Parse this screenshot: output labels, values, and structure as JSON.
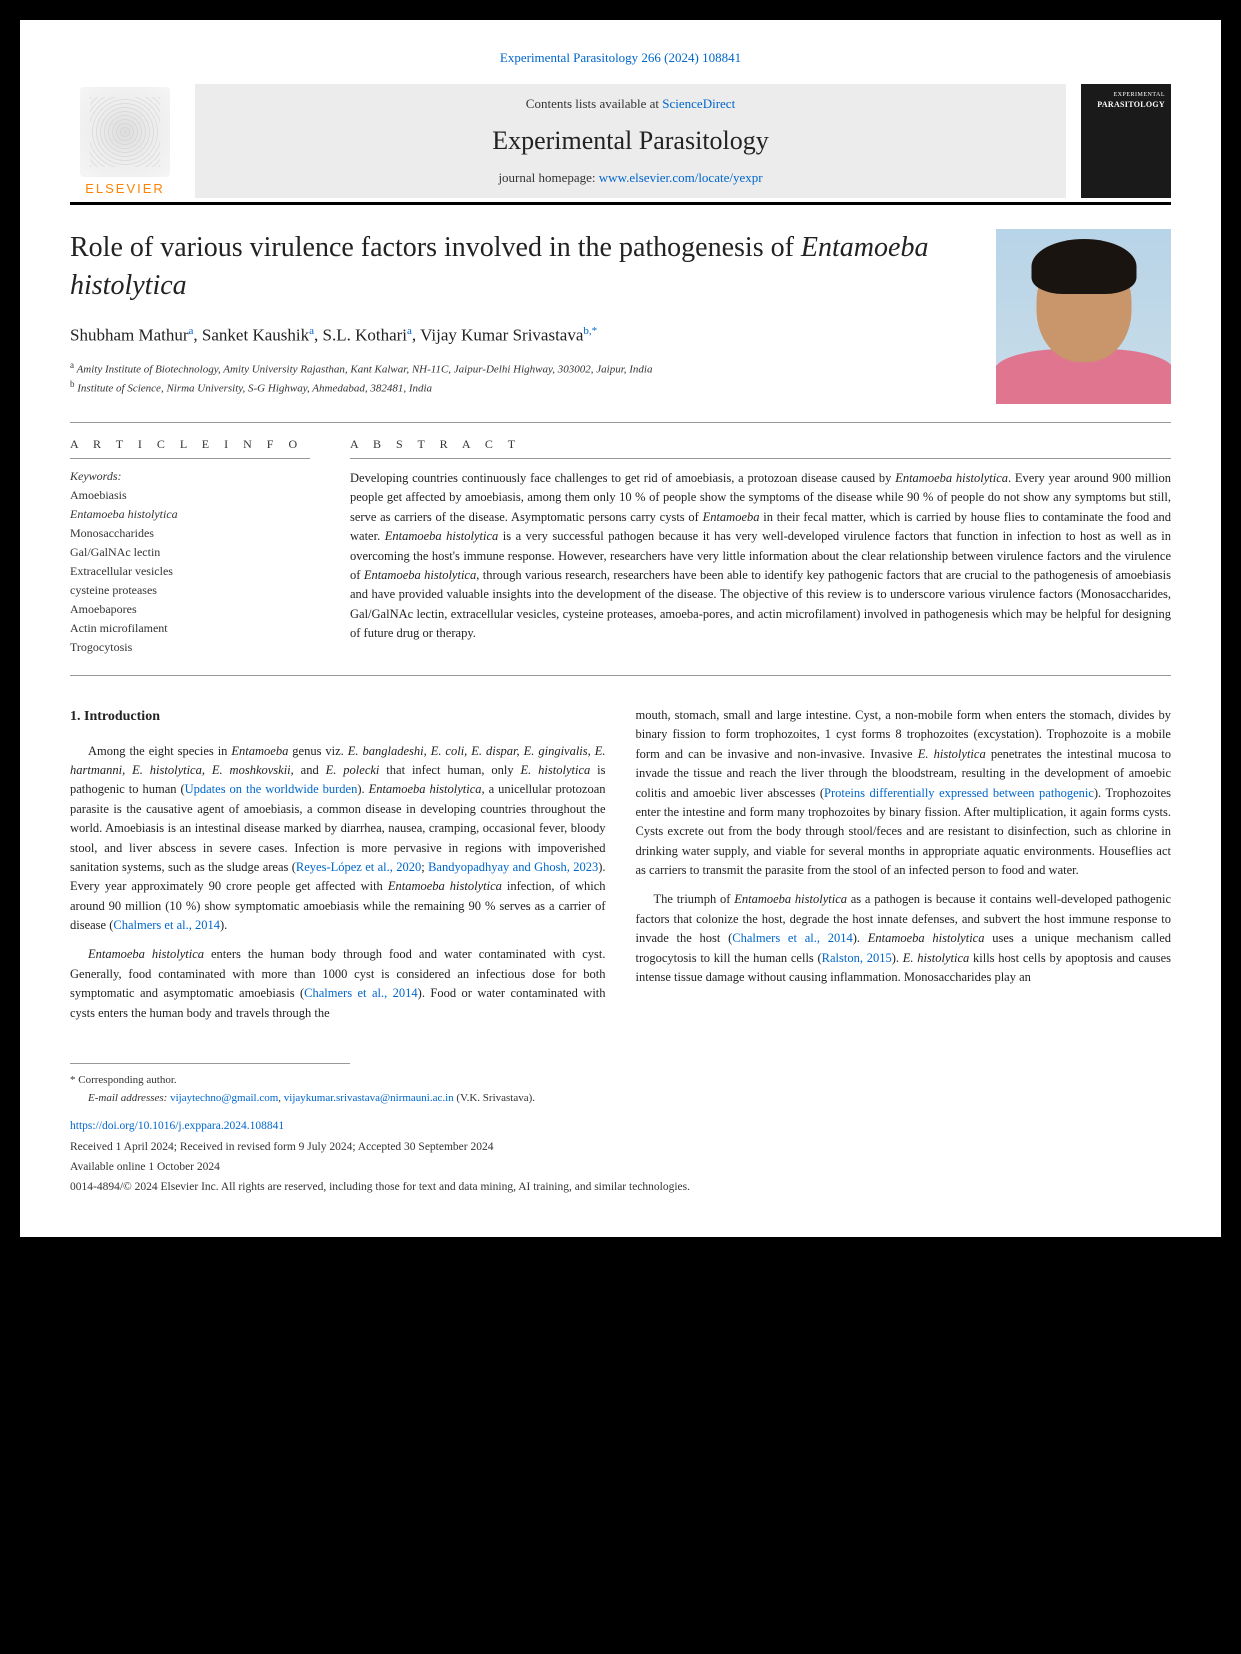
{
  "header": {
    "citation": "Experimental Parasitology 266 (2024) 108841",
    "contents_prefix": "Contents lists available at ",
    "contents_link": "ScienceDirect",
    "journal_name": "Experimental Parasitology",
    "homepage_prefix": "journal homepage: ",
    "homepage_url": "www.elsevier.com/locate/yexpr",
    "elsevier_label": "ELSEVIER",
    "cover_small": "EXPERIMENTAL",
    "cover_title": "PARASITOLOGY"
  },
  "article": {
    "title_pre": "Role of various virulence factors involved in the pathogenesis of ",
    "title_italic": "Entamoeba histolytica",
    "authors_html": "Shubham Mathur",
    "author2": "Sanket Kaushik",
    "author3": "S.L. Kothari",
    "author4": "Vijay Kumar Srivastava",
    "sup_a": "a",
    "sup_b": "b,",
    "sup_star": "*",
    "aff_a": "Amity Institute of Biotechnology, Amity University Rajasthan, Kant Kalwar, NH-11C, Jaipur-Delhi Highway, 303002, Jaipur, India",
    "aff_b": "Institute of Science, Nirma University, S-G Highway, Ahmedabad, 382481, India"
  },
  "info": {
    "label": "A R T I C L E  I N F O",
    "keywords_label": "Keywords:",
    "keywords": [
      "Amoebiasis",
      "Entamoeba histolytica",
      "Monosaccharides",
      "Gal/GalNAc lectin",
      "Extracellular vesicles",
      "cysteine proteases",
      "Amoebapores",
      "Actin microfilament",
      "Trogocytosis"
    ]
  },
  "abstract": {
    "label": "A B S T R A C T",
    "text_parts": {
      "p1": "Developing countries continuously face challenges to get rid of amoebiasis, a protozoan disease caused by ",
      "i1": "Entamoeba histolytica",
      "p2": ". Every year around 900 million people get affected by amoebiasis, among them only 10 % of people show the symptoms of the disease while 90 % of people do not show any symptoms but still, serve as carriers of the disease. Asymptomatic persons carry cysts of ",
      "i2": "Entamoeba",
      "p3": " in their fecal matter, which is carried by house flies to contaminate the food and water. ",
      "i3": "Entamoeba histolytica",
      "p4": " is a very successful pathogen because it has very well-developed virulence factors that function in infection to host as well as in overcoming the host's immune response. However, researchers have very little information about the clear relationship between virulence factors and the virulence of ",
      "i4": "Entamoeba histolytica",
      "p5": ", through various research, researchers have been able to identify key pathogenic factors that are crucial to the pathogenesis of amoebiasis and have provided valuable insights into the development of the disease. The objective of this review is to underscore various virulence factors (Monosaccharides, Gal/GalNAc lectin, extracellular vesicles, cysteine proteases, amoeba-pores, and actin microfilament) involved in pathogenesis which may be helpful for designing of future drug or therapy."
    }
  },
  "body": {
    "section_heading": "1.  Introduction",
    "col1": {
      "p1a": "Among the eight species in ",
      "p1i1": "Entamoeba",
      "p1b": " genus viz. ",
      "p1i2": "E. bangladeshi, E. coli, E. dispar, E. gingivalis, E. hartmanni, E. histolytica, E. moshkovskii,",
      "p1c": " and ",
      "p1i3": "E. polecki",
      "p1d": " that infect human, only ",
      "p1i4": "E. histolytica",
      "p1e": " is pathogenic to human (",
      "p1l1": "Updates on the worldwide burden",
      "p1f": "). ",
      "p1i5": "Entamoeba histolytica",
      "p1g": ", a unicellular protozoan parasite is the causative agent of amoebiasis, a common disease in developing countries throughout the world. Amoebiasis is an intestinal disease marked by diarrhea, nausea, cramping, occasional fever, bloody stool, and liver abscess in severe cases. Infection is more pervasive in regions with impoverished sanitation systems, such as the sludge areas (",
      "p1l2": "Reyes-López et al., 2020",
      "p1sep": "; ",
      "p1l3": "Bandyopadhyay and Ghosh, 2023",
      "p1h": "). Every year approximately 90 crore people get affected with ",
      "p1i6": "Entamoeba histolytica",
      "p1j": " infection, of which around 90 million (10 %) show symptomatic amoebiasis while the remaining 90 % serves as a carrier of disease (",
      "p1l4": "Chalmers et al., 2014",
      "p1k": ").",
      "p2a": "Entamoeba histolytica",
      "p2b": " enters the human body through food and water contaminated with cyst. Generally, food contaminated with more than 1000 cyst is considered an infectious dose for both symptomatic and asymptomatic amoebiasis (",
      "p2l1": "Chalmers et al., 2014",
      "p2c": "). Food or water contaminated with cysts enters the human body and travels through the"
    },
    "col2": {
      "p1a": "mouth, stomach, small and large intestine. Cyst, a non-mobile form when enters the stomach, divides by binary fission to form trophozoites, 1 cyst forms 8 trophozoites (excystation). Trophozoite is a mobile form and can be invasive and non-invasive. Invasive ",
      "p1i1": "E. histolytica",
      "p1b": " penetrates the intestinal mucosa to invade the tissue and reach the liver through the bloodstream, resulting in the development of amoebic colitis and amoebic liver abscesses (",
      "p1l1": "Proteins differentially expressed between pathogenic",
      "p1c": "). Trophozoites enter the intestine and form many trophozoites by binary fission. After multiplication, it again forms cysts. Cysts excrete out from the body through stool/feces and are resistant to disinfection, such as chlorine in drinking water supply, and viable for several months in appropriate aquatic environments. Houseflies act as carriers to transmit the parasite from the stool of an infected person to food and water.",
      "p2a": "The triumph of ",
      "p2i1": "Entamoeba histolytica",
      "p2b": " as a pathogen is because it contains well-developed pathogenic factors that colonize the host, degrade the host innate defenses, and subvert the host immune response to invade the host (",
      "p2l1": "Chalmers et al., 2014",
      "p2c": "). ",
      "p2i2": "Entamoeba histolytica",
      "p2d": " uses a unique mechanism called trogocytosis to kill the human cells (",
      "p2l2": "Ralston, 2015",
      "p2e": "). ",
      "p2i3": "E. histolytica",
      "p2f": " kills host cells by apoptosis and causes intense tissue damage without causing inflammation. Monosaccharides play an"
    }
  },
  "footer": {
    "corresponding": "* Corresponding author.",
    "email_label": "E-mail addresses: ",
    "email1": "vijaytechno@gmail.com",
    "email_sep": ", ",
    "email2": "vijaykumar.srivastava@nirmauni.ac.in",
    "email_name": " (V.K. Srivastava).",
    "doi": "https://doi.org/10.1016/j.exppara.2024.108841",
    "dates": "Received 1 April 2024; Received in revised form 9 July 2024; Accepted 30 September 2024",
    "available": "Available online 1 October 2024",
    "copyright": "0014-4894/© 2024 Elsevier Inc. All rights are reserved, including those for text and data mining, AI training, and similar technologies."
  },
  "colors": {
    "link": "#0066cc",
    "elsevier_orange": "#ff8200",
    "banner_bg": "#ececec",
    "rule": "#999999",
    "text": "#222222"
  }
}
